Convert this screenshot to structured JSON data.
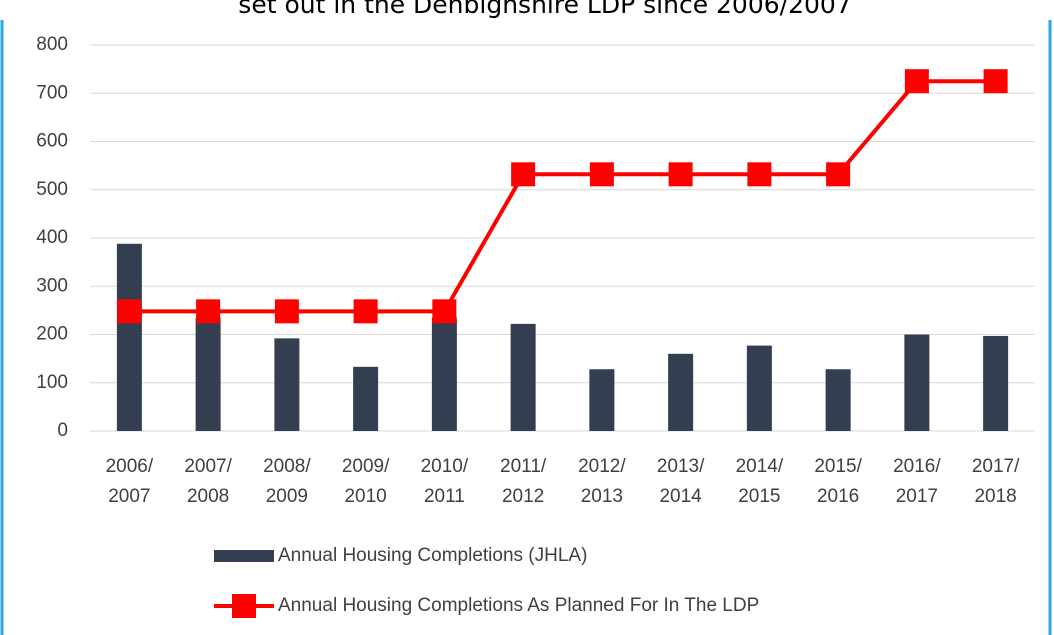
{
  "chart_data": {
    "type": "bar_line",
    "title": "set out in the Denbighshire LDP since 2006/2007",
    "categories": [
      [
        "2006/",
        "2007"
      ],
      [
        "2007/",
        "2008"
      ],
      [
        "2008/",
        "2009"
      ],
      [
        "2009/",
        "2010"
      ],
      [
        "2010/",
        "2011"
      ],
      [
        "2011/",
        "2012"
      ],
      [
        "2012/",
        "2013"
      ],
      [
        "2013/",
        "2014"
      ],
      [
        "2014/",
        "2015"
      ],
      [
        "2015/",
        "2016"
      ],
      [
        "2016/",
        "2017"
      ],
      [
        "2017/",
        "2018"
      ]
    ],
    "series": [
      {
        "name": "Annual Housing Completions (JHLA)",
        "type": "bar",
        "color": "#333f50",
        "values": [
          388,
          235,
          192,
          133,
          235,
          222,
          128,
          160,
          177,
          128,
          200,
          197
        ]
      },
      {
        "name": "Annual Housing Completions As Planned For In The LDP",
        "type": "line",
        "color": "#ff0000",
        "values": [
          248,
          248,
          248,
          248,
          248,
          532,
          532,
          532,
          532,
          532,
          725,
          725
        ]
      }
    ],
    "ylim": [
      0,
      800
    ],
    "yticks": [
      0,
      100,
      200,
      300,
      400,
      500,
      600,
      700,
      800
    ],
    "grid": true,
    "legend": "bottom"
  }
}
